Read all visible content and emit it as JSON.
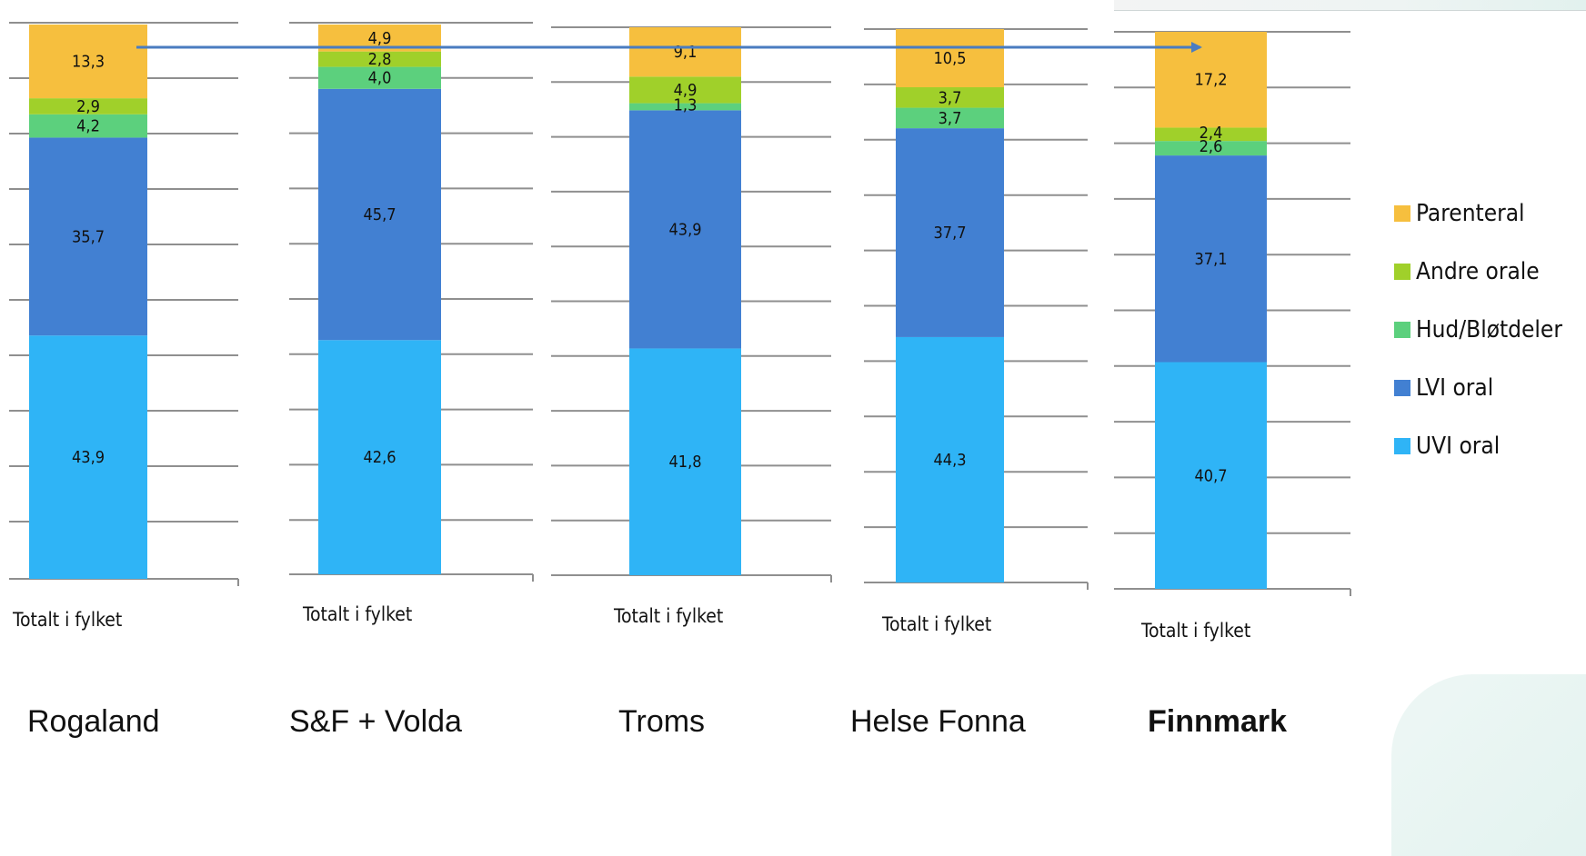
{
  "chart_data": {
    "type": "bar",
    "stacked": true,
    "orientation": "vertical",
    "series": [
      {
        "name": "UVI oral",
        "color": "#2fb4f6"
      },
      {
        "name": "LVI oral",
        "color": "#4280d2"
      },
      {
        "name": "Hud/Bløtdeler",
        "color": "#5cd07d"
      },
      {
        "name": "Andre orale",
        "color": "#a0d02a"
      },
      {
        "name": "Parenteral",
        "color": "#f6bf3e"
      }
    ],
    "panels": [
      {
        "region": "Rogaland",
        "bold": false,
        "category": "Totalt i fylket",
        "values": [
          43.9,
          35.7,
          4.2,
          2.9,
          13.3
        ],
        "labels": [
          "43,9",
          "35,7",
          "4,2",
          "2,9",
          "13,3"
        ]
      },
      {
        "region": "S&F + Volda",
        "bold": false,
        "category": "Totalt i fylket",
        "values": [
          42.6,
          45.7,
          4.0,
          2.8,
          4.9
        ],
        "labels": [
          "42,6",
          "45,7",
          "4,0",
          "2,8",
          "4,9"
        ]
      },
      {
        "region": "Troms",
        "bold": false,
        "category": "Totalt i fylket",
        "values": [
          41.8,
          43.9,
          1.3,
          4.9,
          9.1
        ],
        "labels": [
          "41,8",
          "43,9",
          "1,3",
          "4,9",
          "9,1"
        ]
      },
      {
        "region": "Helse Fonna",
        "bold": false,
        "category": "Totalt i fylket",
        "values": [
          44.3,
          37.7,
          3.7,
          3.7,
          10.5
        ],
        "labels": [
          "44,3",
          "37,7",
          "3,7",
          "3,7",
          "10,5"
        ]
      },
      {
        "region": "Finnmark",
        "bold": true,
        "category": "Totalt i fylket",
        "values": [
          40.7,
          37.1,
          2.6,
          2.4,
          17.2
        ],
        "labels": [
          "40,7",
          "37,1",
          "2,6",
          "2,4",
          "17,2"
        ]
      }
    ],
    "legend": {
      "position": "right",
      "order": [
        "Parenteral",
        "Andre orale",
        "Hud/Bløtdeler",
        "LVI oral",
        "UVI oral"
      ]
    },
    "arrow": {
      "from_panel": "Rogaland",
      "to_panel": "Finnmark",
      "series": "Parenteral",
      "color": "#4a7cc0"
    }
  }
}
